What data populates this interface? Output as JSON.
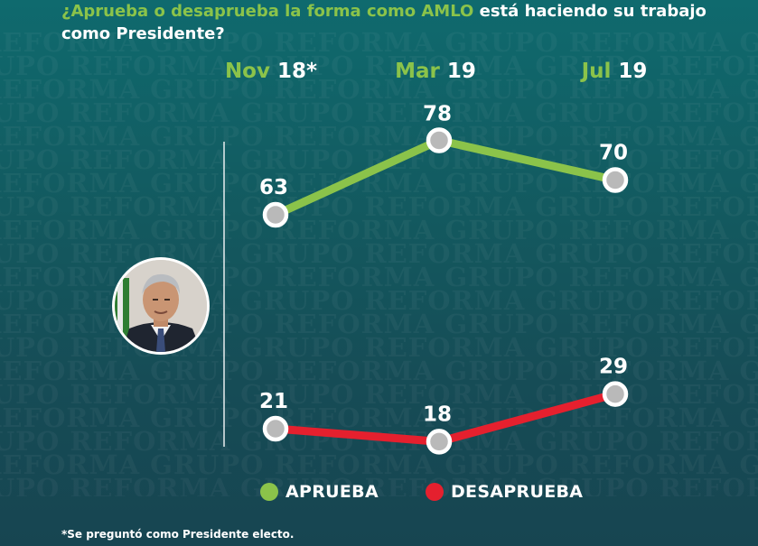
{
  "header": {
    "q_lead": "¿Aprueba o desaprueba la forma como ",
    "q_subject": "AMLO",
    "q_tail": " está haciendo su trabajo como Presidente?"
  },
  "watermark_text": "GRUPO REFORMA",
  "colors": {
    "aprueba": "#8bc34a",
    "desaprueba": "#e5202e",
    "point_fill": "#b9b9b9",
    "point_stroke": "#ffffff",
    "background_top": "#0f6a6e",
    "background_bottom": "#174551"
  },
  "chart_data": {
    "type": "line",
    "categories": [
      {
        "month": "Nov",
        "year": "18*"
      },
      {
        "month": "Mar",
        "year": "19"
      },
      {
        "month": "Jul",
        "year": "19"
      }
    ],
    "series": [
      {
        "name": "APRUEBA",
        "values": [
          63,
          78,
          70
        ],
        "labels": [
          "63",
          "78",
          "70"
        ],
        "color": "#8bc34a"
      },
      {
        "name": "DESAPRUEBA",
        "values": [
          21,
          18,
          29
        ],
        "labels": [
          "21",
          "18",
          "29"
        ],
        "color": "#e5202e"
      }
    ],
    "grid": false,
    "legend": "bottom"
  },
  "avatar": {
    "icon": "amlo-portrait-icon"
  },
  "footnote": "*Se preguntó como Presidente electo."
}
